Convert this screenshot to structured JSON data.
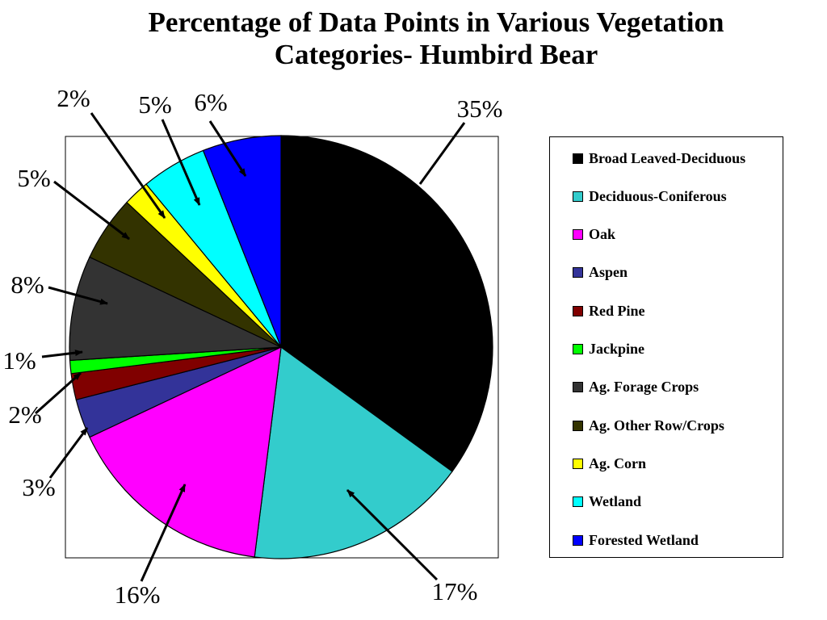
{
  "chart_data": {
    "type": "pie",
    "title_line1": "Percentage of Data Points in Various Vegetation",
    "title_line2": "Categories- Humbird Bear",
    "legend_position": "right",
    "slices": [
      {
        "name": "Broad Leaved-Deciduous",
        "value": 35,
        "label": "35%",
        "color": "#000000"
      },
      {
        "name": "Deciduous-Coniferous",
        "value": 17,
        "label": "17%",
        "color": "#33CCCC"
      },
      {
        "name": "Oak",
        "value": 16,
        "label": "16%",
        "color": "#FF00FF"
      },
      {
        "name": "Aspen",
        "value": 3,
        "label": "3%",
        "color": "#333399"
      },
      {
        "name": "Red Pine",
        "value": 2,
        "label": "2%",
        "color": "#800000"
      },
      {
        "name": "Jackpine",
        "value": 1,
        "label": "1%",
        "color": "#00FF00"
      },
      {
        "name": "Ag. Forage Crops",
        "value": 8,
        "label": "8%",
        "color": "#333333"
      },
      {
        "name": "Ag. Other Row/Crops",
        "value": 5,
        "label": "5%",
        "color": "#333300"
      },
      {
        "name": "Ag. Corn",
        "value": 2,
        "label": "2%",
        "color": "#FFFF00"
      },
      {
        "name": "Wetland",
        "value": 5,
        "label": "5%",
        "color": "#00FFFF"
      },
      {
        "name": "Forested Wetland",
        "value": 6,
        "label": "6%",
        "color": "#0000FF"
      }
    ]
  }
}
